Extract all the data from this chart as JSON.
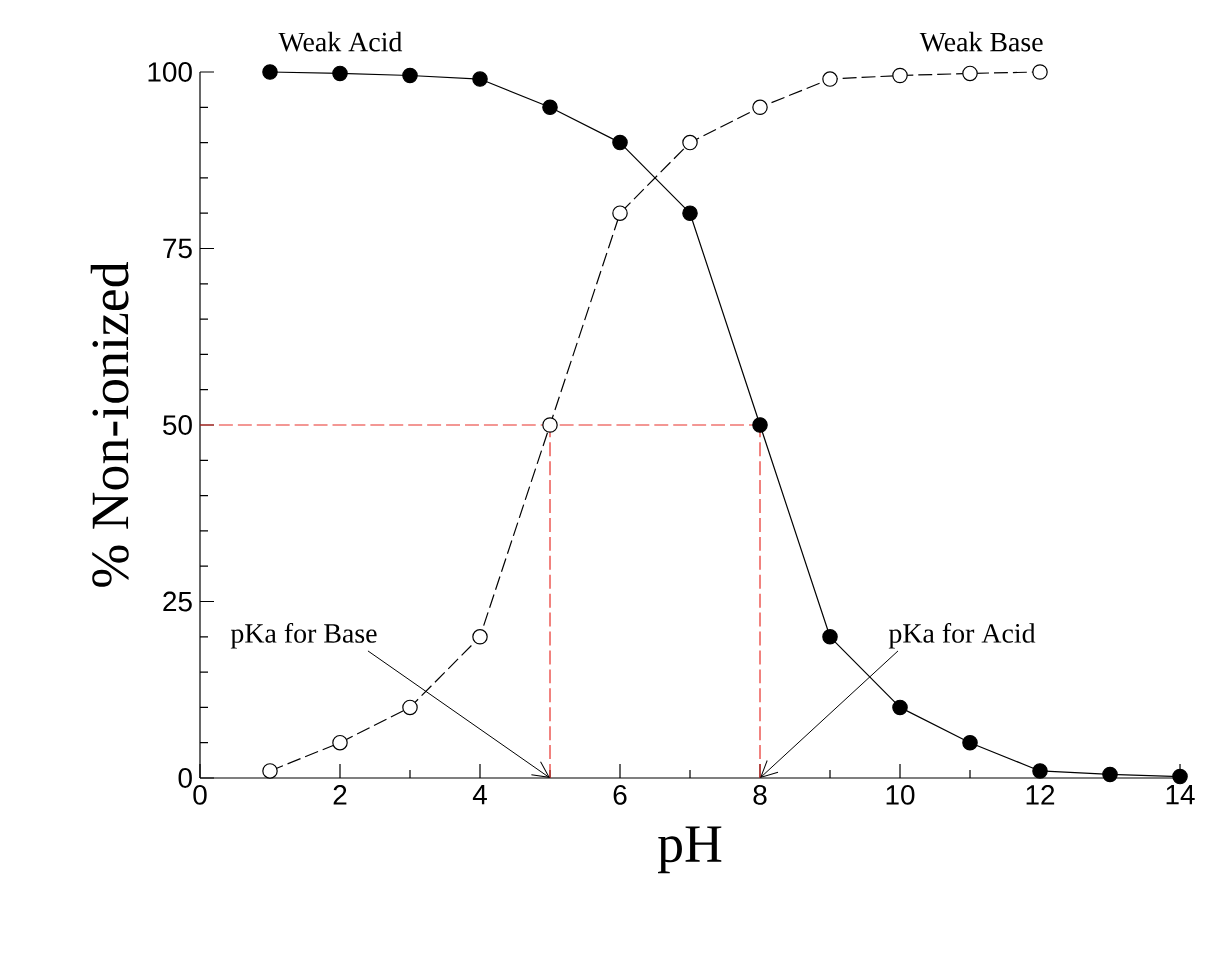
{
  "chart_data": {
    "type": "line",
    "xlabel": "pH",
    "ylabel": "% Non-ionized",
    "x": [
      1,
      2,
      3,
      4,
      5,
      6,
      7,
      8,
      9,
      10,
      11,
      12,
      13,
      14
    ],
    "series": [
      {
        "name": "Weak Acid",
        "color": "#000000",
        "line_style": "solid",
        "values": [
          100,
          99.8,
          99.5,
          99,
          95,
          90,
          80,
          50,
          20,
          10,
          5,
          1,
          0.5,
          0.2
        ]
      },
      {
        "name": "Weak Base",
        "color": "#ffffff",
        "line_style": "dashed",
        "values": [
          1,
          5,
          10,
          20,
          50,
          80,
          90,
          95,
          99,
          99.5,
          99.8,
          100,
          null,
          null
        ]
      }
    ],
    "marker": "circle",
    "xlim": [
      0,
      14
    ],
    "ylim": [
      0,
      100
    ],
    "xticks": [
      0,
      2,
      4,
      6,
      8,
      10,
      12,
      14
    ],
    "yticks": [
      0,
      25,
      50,
      75,
      100
    ],
    "ref_lines": [
      {
        "axis": "y",
        "value": 50,
        "color": "#e8302a",
        "line_style": "dashed"
      },
      {
        "axis": "x",
        "value": 5,
        "color": "#e8302a",
        "line_style": "dashed"
      },
      {
        "axis": "x",
        "value": 8,
        "color": "#e8302a",
        "line_style": "dashed"
      }
    ],
    "annotations": [
      {
        "text": "pKa for Base",
        "x": 5,
        "y": 0
      },
      {
        "text": "pKa for Acid",
        "x": 8,
        "y": 0
      }
    ]
  }
}
